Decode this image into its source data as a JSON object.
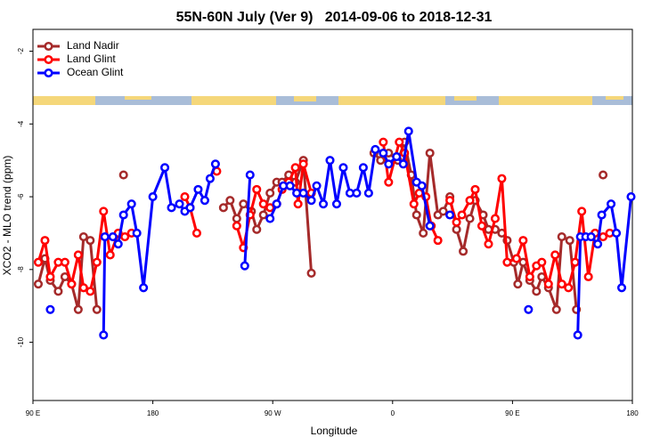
{
  "chart_data": {
    "type": "line",
    "title": "55N-60N July (Ver 9)   2014-09-06 to 2018-12-31",
    "x_label": "Longitude",
    "y_label": "XCO2 - MLO trend (ppm)",
    "xlim": [
      90,
      540
    ],
    "ylim": [
      -11.6,
      -1.4
    ],
    "xticks": [
      {
        "value": 90,
        "label": "90 E"
      },
      180,
      {
        "value": 270,
        "label": "90 W"
      },
      {
        "value": 360,
        "label": "0"
      },
      {
        "value": 450,
        "label": "90 E"
      },
      {
        "value": 540,
        "label": "180"
      }
    ],
    "yticks": [
      -2,
      -4,
      -6,
      -8,
      -10
    ],
    "legend": "top-left",
    "series": [
      {
        "name": "Land Nadir",
        "color": "#a52a2a",
        "x": [
          94,
          99,
          103,
          109,
          114,
          119,
          124,
          128,
          133,
          138,
          null,
          158,
          null,
          233,
          238,
          243,
          248,
          254,
          258,
          263,
          268,
          273,
          277,
          282,
          287,
          293,
          299,
          null,
          346,
          351,
          357,
          364,
          369,
          374,
          378,
          383,
          388,
          394,
          398,
          403,
          408,
          413,
          418,
          422,
          428,
          432,
          437,
          442,
          446,
          451,
          454,
          458,
          463,
          468,
          472,
          477,
          483,
          487,
          493,
          498,
          null,
          518
        ],
        "values": [
          -8.4,
          -7.7,
          -8.3,
          -8.6,
          -8.2,
          -8.4,
          -9.1,
          -7.1,
          -7.2,
          -9.1,
          null,
          -5.4,
          null,
          -6.3,
          -6.1,
          -6.6,
          -6.2,
          -6.4,
          -6.9,
          -6.5,
          -5.9,
          -5.6,
          -5.6,
          -5.4,
          -5.6,
          -5.0,
          -8.1,
          null,
          -4.8,
          -5.0,
          -4.8,
          -5.0,
          -4.5,
          -5.4,
          -6.5,
          -7.0,
          -4.8,
          -6.5,
          -6.4,
          -6.0,
          -6.9,
          -7.5,
          -6.6,
          -6.1,
          -6.5,
          -6.9,
          -6.9,
          -7.0,
          -7.2,
          -7.8,
          -8.4,
          -7.8,
          -8.3,
          -8.6,
          -8.2,
          -8.5,
          -9.1,
          -7.1,
          -7.2,
          -9.1,
          null,
          -5.4
        ]
      },
      {
        "name": "Land Glint",
        "color": "#ff0000",
        "x": [
          94,
          99,
          103,
          109,
          114,
          119,
          124,
          128,
          133,
          138,
          143,
          148,
          154,
          159,
          164,
          null,
          204,
          208,
          213,
          null,
          228,
          null,
          243,
          248,
          253,
          258,
          263,
          268,
          273,
          277,
          282,
          287,
          289,
          293,
          299,
          null,
          353,
          357,
          365,
          369,
          376,
          380,
          385,
          389,
          394,
          null,
          403,
          408,
          412,
          418,
          422,
          427,
          432,
          437,
          442,
          446,
          453,
          458,
          463,
          468,
          472,
          477,
          482,
          487,
          492,
          497,
          502,
          507,
          512,
          518,
          523
        ],
        "values": [
          -7.8,
          -7.2,
          -8.2,
          -7.8,
          -7.8,
          -8.4,
          -7.6,
          -8.5,
          -8.6,
          -7.8,
          -6.4,
          -7.6,
          -7.0,
          -7.1,
          -7.0,
          null,
          -6.0,
          -6.3,
          -7.0,
          null,
          -5.3,
          null,
          -6.8,
          -7.4,
          -6.5,
          -5.8,
          -6.2,
          -6.3,
          -6.2,
          -5.8,
          -5.6,
          -5.2,
          -6.2,
          -5.1,
          -5.9,
          null,
          -4.5,
          -5.6,
          -4.5,
          -4.8,
          -6.2,
          -5.9,
          -6.0,
          -6.8,
          -7.2,
          null,
          -6.1,
          -6.7,
          -6.5,
          -6.1,
          -5.8,
          -6.8,
          -7.3,
          -6.6,
          -5.5,
          -7.8,
          -7.7,
          -7.2,
          -8.2,
          -7.9,
          -7.8,
          -8.4,
          -7.6,
          -8.4,
          -8.5,
          -7.8,
          -6.4,
          -8.2,
          -7.0,
          -7.1,
          -7.0
        ]
      },
      {
        "name": "Ocean Glint",
        "color": "#0000ff",
        "x": [
          103,
          null,
          143,
          144,
          150,
          154,
          158,
          164,
          168,
          173,
          180,
          189,
          194,
          200,
          204,
          208,
          214,
          219,
          223,
          227,
          null,
          249,
          253,
          null,
          268,
          273,
          278,
          283,
          288,
          293,
          299,
          303,
          308,
          313,
          318,
          323,
          328,
          333,
          338,
          342,
          347,
          353,
          357,
          363,
          368,
          372,
          378,
          382,
          388,
          null,
          403,
          null,
          462,
          null,
          499,
          501,
          505,
          509,
          514,
          517,
          524,
          528,
          532,
          539
        ],
        "values": [
          -9.1,
          null,
          -9.8,
          -7.1,
          -7.1,
          -7.3,
          -6.5,
          -6.2,
          -7.0,
          -8.5,
          -6.0,
          -5.2,
          -6.3,
          -6.2,
          -6.4,
          -6.3,
          -5.8,
          -6.1,
          -5.5,
          -5.1,
          null,
          -7.9,
          -5.4,
          null,
          -6.6,
          -6.2,
          -5.7,
          -5.7,
          -5.9,
          -5.9,
          -6.1,
          -5.7,
          -6.2,
          -5.0,
          -6.2,
          -5.2,
          -5.9,
          -5.9,
          -5.2,
          -5.9,
          -4.7,
          -4.8,
          -5.1,
          -4.9,
          -5.1,
          -4.2,
          -5.6,
          -5.7,
          -6.8,
          null,
          -6.5,
          null,
          -9.1,
          null,
          -9.8,
          -7.1,
          -7.1,
          -7.1,
          -7.3,
          -6.5,
          -6.2,
          -7.0,
          -8.5,
          -6.0
        ]
      }
    ]
  }
}
